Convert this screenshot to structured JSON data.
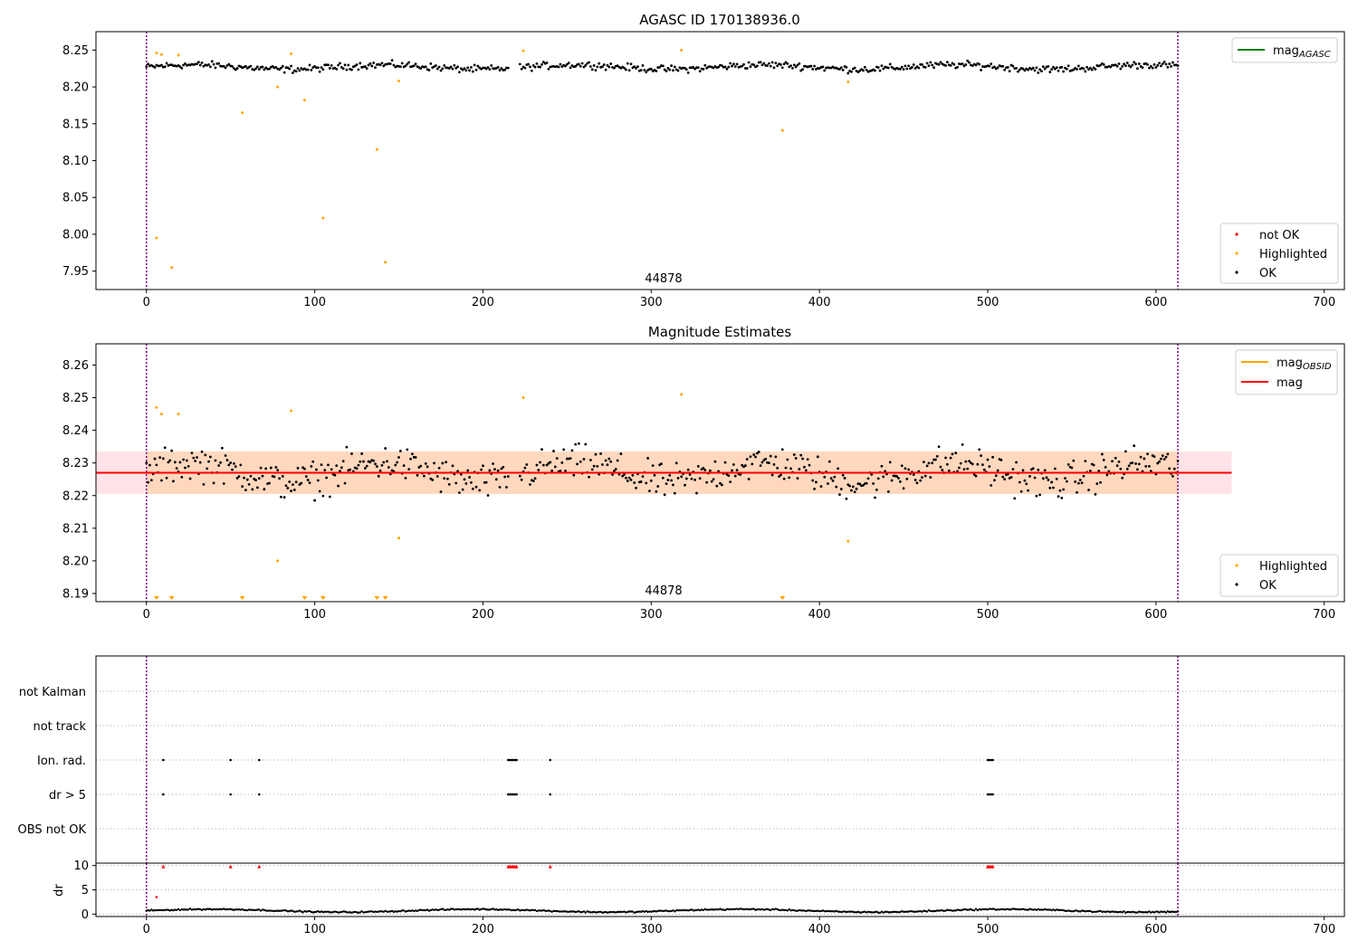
{
  "chart_data": [
    {
      "type": "scatter",
      "title": "AGASC ID 170138936.0",
      "xlim": [
        -30,
        712
      ],
      "ylim": [
        7.925,
        8.275
      ],
      "xticks": [
        0,
        100,
        200,
        300,
        400,
        500,
        600,
        700
      ],
      "yticks": [
        7.95,
        8.0,
        8.05,
        8.1,
        8.15,
        8.2,
        8.25
      ],
      "ytick_labels": [
        "7.95",
        "8.00",
        "8.05",
        "8.10",
        "8.15",
        "8.20",
        "8.25"
      ],
      "vlines": [
        0,
        613
      ],
      "annotation": {
        "text": "44878",
        "x": 307,
        "y": 7.93
      },
      "ok_band": {
        "x_range": [
          0,
          613
        ],
        "center": 8.227,
        "amplitude": 0.007,
        "gap": [
          215,
          222
        ]
      },
      "highlighted": [
        [
          6,
          7.995
        ],
        [
          15,
          7.955
        ],
        [
          6,
          8.246
        ],
        [
          9,
          8.244
        ],
        [
          19,
          8.243
        ],
        [
          57,
          8.165
        ],
        [
          78,
          8.2
        ],
        [
          86,
          8.245
        ],
        [
          94,
          8.182
        ],
        [
          105,
          8.022
        ],
        [
          137,
          8.115
        ],
        [
          142,
          7.962
        ],
        [
          150,
          8.208
        ],
        [
          224,
          8.249
        ],
        [
          318,
          8.25
        ],
        [
          378,
          8.141
        ],
        [
          417,
          8.207
        ]
      ],
      "legend_top": [
        {
          "label": "mag",
          "sub": "AGASC",
          "color": "#008000"
        }
      ],
      "legend_bottom": [
        {
          "label": "not OK",
          "color": "#ff0000"
        },
        {
          "label": "Highlighted",
          "color": "#ffa500"
        },
        {
          "label": "OK",
          "color": "#000000"
        }
      ]
    },
    {
      "type": "scatter",
      "title": "Magnitude Estimates",
      "xlim": [
        -30,
        712
      ],
      "ylim": [
        8.1875,
        8.2665
      ],
      "xticks": [
        0,
        100,
        200,
        300,
        400,
        500,
        600,
        700
      ],
      "yticks": [
        8.19,
        8.2,
        8.21,
        8.22,
        8.23,
        8.24,
        8.25,
        8.26
      ],
      "ytick_labels": [
        "8.19",
        "8.20",
        "8.21",
        "8.22",
        "8.23",
        "8.24",
        "8.25",
        "8.26"
      ],
      "vlines": [
        0,
        613
      ],
      "annotation": {
        "text": "44878",
        "x": 307,
        "y": 8.1895
      },
      "mag": 8.227,
      "mag_band": [
        8.2205,
        8.2335
      ],
      "mag_band_xrange": [
        -30,
        645
      ],
      "obsid_band": [
        8.2205,
        8.2335
      ],
      "obsid_band_xrange": [
        0,
        613
      ],
      "ok_band": {
        "x_range": [
          0,
          613
        ],
        "center": 8.227,
        "amplitude": 0.008,
        "gap": [
          215,
          222
        ]
      },
      "highlighted": [
        [
          6,
          8.247
        ],
        [
          9,
          8.245
        ],
        [
          19,
          8.245
        ],
        [
          86,
          8.246
        ],
        [
          78,
          8.2
        ],
        [
          150,
          8.207
        ],
        [
          224,
          8.25
        ],
        [
          318,
          8.251
        ],
        [
          417,
          8.206
        ]
      ],
      "below_range_markers_x": [
        6,
        15,
        57,
        94,
        105,
        137,
        142,
        378
      ],
      "legend_top": [
        {
          "label": "mag",
          "sub": "OBSID",
          "color": "#ffa500"
        },
        {
          "label": "mag",
          "sub": "",
          "color": "#ff0000"
        }
      ],
      "legend_bottom": [
        {
          "label": "Highlighted",
          "color": "#ffa500"
        },
        {
          "label": "OK",
          "color": "#000000"
        }
      ]
    },
    {
      "type": "scatter",
      "xlim": [
        -30,
        712
      ],
      "xticks": [
        0,
        100,
        200,
        300,
        400,
        500,
        600,
        700
      ],
      "vlines": [
        0,
        613
      ],
      "flag_categories": [
        "not Kalman",
        "not track",
        "Ion. rad.",
        "dr > 5",
        "OBS not OK"
      ],
      "flags": {
        "Ion. rad.": [
          10,
          50,
          67,
          215,
          216,
          217,
          218,
          219,
          220,
          240,
          500,
          501,
          502,
          503
        ],
        "dr > 5": [
          10,
          50,
          67,
          215,
          216,
          217,
          218,
          219,
          220,
          240,
          500,
          501,
          502,
          503
        ]
      }
    },
    {
      "type": "scatter",
      "ylabel": "dr",
      "xlim": [
        -30,
        712
      ],
      "ylim": [
        -0.5,
        10.5
      ],
      "xticks": [
        0,
        100,
        200,
        300,
        400,
        500,
        600,
        700
      ],
      "yticks": [
        0,
        5,
        10
      ],
      "ytick_labels": [
        "0",
        "5",
        "10"
      ],
      "vlines": [
        0,
        613
      ],
      "clipped_red_x": [
        10,
        50,
        67,
        215,
        216,
        217,
        218,
        219,
        220,
        240,
        500,
        501,
        502,
        503
      ],
      "outlier_red": [
        [
          6,
          3.5
        ]
      ],
      "dr_band": {
        "x_range": [
          0,
          613
        ],
        "center": 0.7,
        "amplitude": 0.4
      }
    }
  ]
}
